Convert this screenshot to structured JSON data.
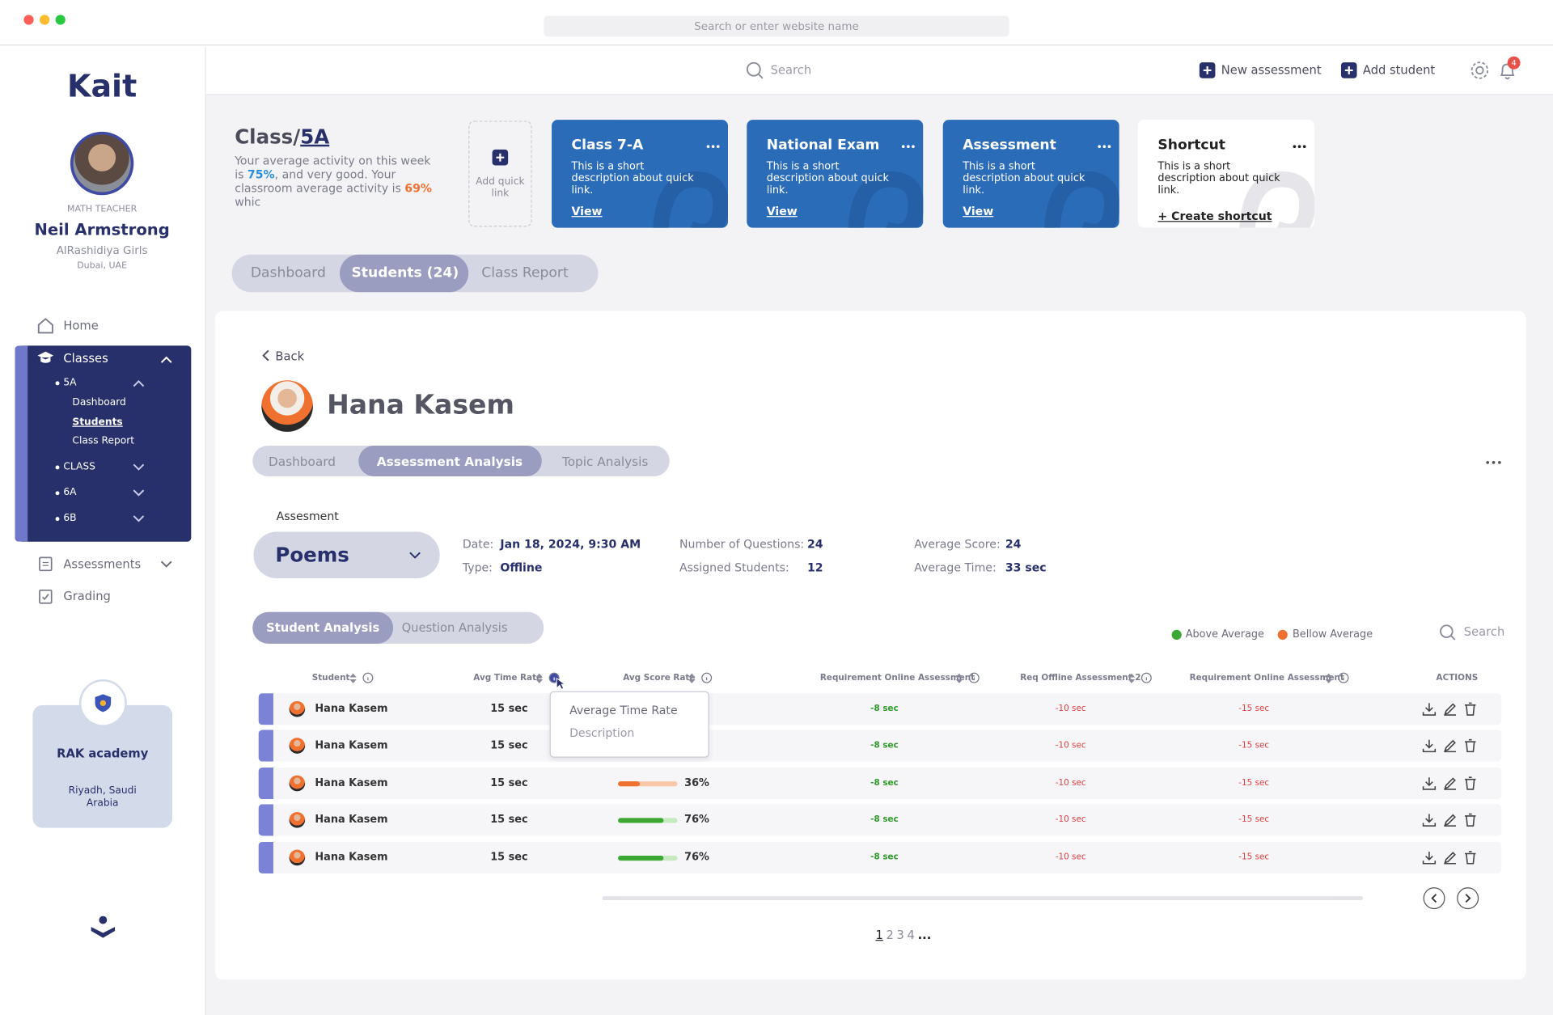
{
  "browser": {
    "address_bar": "Search or enter website name"
  },
  "sidebar": {
    "logo": "Kait",
    "profile": {
      "role": "MATH TEACHER",
      "name": "Neil Armstrong",
      "school": "AlRashidiya Girls",
      "location": "Dubai, UAE"
    },
    "nav": {
      "home": "Home",
      "classes": "Classes",
      "class_items": [
        {
          "label": "5A",
          "children": [
            "Dashboard",
            "Students",
            "Class Report"
          ]
        },
        {
          "label": "CLASS"
        },
        {
          "label": "6A"
        },
        {
          "label": "6B"
        }
      ],
      "assessments": "Assessments",
      "grading": "Grading"
    },
    "academy": {
      "name": "RAK academy",
      "location": "Riyadh, Saudi Arabia"
    }
  },
  "header": {
    "search": "Search",
    "actions": [
      "New assessment",
      "Add student"
    ],
    "notification_count": 4
  },
  "class_overview": {
    "title_prefix": "Class/",
    "title_class": "5A",
    "description": {
      "intro": "Your average activity on this week is ",
      "week_activity": "75%",
      "middle": ", and very good. Your classroom average activity is ",
      "class_activity": "69%",
      "tail": " whic"
    }
  },
  "quick_links": {
    "add": "Add quick link",
    "cards": [
      {
        "title": "Class 7-A",
        "description": "This is a short description about quick link.",
        "link": "View"
      },
      {
        "title": "National Exam",
        "description": "This is a short description about quick link.",
        "link": "View"
      },
      {
        "title": "Assessment",
        "description": "This is a short description about quick link.",
        "link": "View"
      },
      {
        "title": "Shortcut",
        "description": "This is a short description about quick link.",
        "link": "+ Create shortcut"
      }
    ]
  },
  "class_tabs": [
    "Dashboard",
    "Students (24)",
    "Class Report"
  ],
  "student": {
    "back": "Back",
    "name": "Hana Kasem",
    "tabs": [
      "Dashboard",
      "Assessment Analysis",
      "Topic Analysis"
    ],
    "assessment_label": "Assesment",
    "assessment": "Poems",
    "details": [
      {
        "label": "Date:",
        "value": "Jan 18, 2024, 9:30 AM"
      },
      {
        "label": "Type:",
        "value": "Offline"
      },
      {
        "label": "Number of Questions:",
        "value": "24"
      },
      {
        "label": "Assigned Students:",
        "value": "12"
      },
      {
        "label": "Average Score:",
        "value": "24"
      },
      {
        "label": "Average Time:",
        "value": "33 sec"
      }
    ]
  },
  "analysis_tabs": [
    "Student Analysis",
    "Question Analysis"
  ],
  "legend": [
    "Above Average",
    "Bellow Average"
  ],
  "table_search": "Search",
  "table": {
    "columns": [
      "Student",
      "Avg Time Rate",
      "Avg Score Rate",
      "Requirement Online Assessment",
      "Req Offline Assessment 2",
      "Requirement Online Assessment",
      "ACTIONS"
    ],
    "rows": [
      {
        "student": "Hana Kasem",
        "avg_time": "15 sec",
        "avg_score": null,
        "avg_score_label": null,
        "req_online": "-8 sec",
        "req_offline": "-10 sec",
        "req_online_2": "-15 sec"
      },
      {
        "student": "Hana Kasem",
        "avg_time": "15 sec",
        "avg_score": null,
        "avg_score_label": null,
        "req_online": "-8 sec",
        "req_offline": "-10 sec",
        "req_online_2": "-15 sec"
      },
      {
        "student": "Hana Kasem",
        "avg_time": "15 sec",
        "avg_score": 36,
        "avg_score_label": "36%",
        "req_online": "-8 sec",
        "req_offline": "-10 sec",
        "req_online_2": "-15 sec"
      },
      {
        "student": "Hana Kasem",
        "avg_time": "15 sec",
        "avg_score": 76,
        "avg_score_label": "76%",
        "req_online": "-8 sec",
        "req_offline": "-10 sec",
        "req_online_2": "-15 sec"
      },
      {
        "student": "Hana Kasem",
        "avg_time": "15 sec",
        "avg_score": 76,
        "avg_score_label": "76%",
        "req_online": "-8 sec",
        "req_offline": "-10 sec",
        "req_online_2": "-15 sec"
      }
    ]
  },
  "tooltip": {
    "title": "Average Time Rate",
    "description": "Description"
  },
  "pagination": [
    "1",
    "2",
    "3",
    "4",
    "..."
  ]
}
